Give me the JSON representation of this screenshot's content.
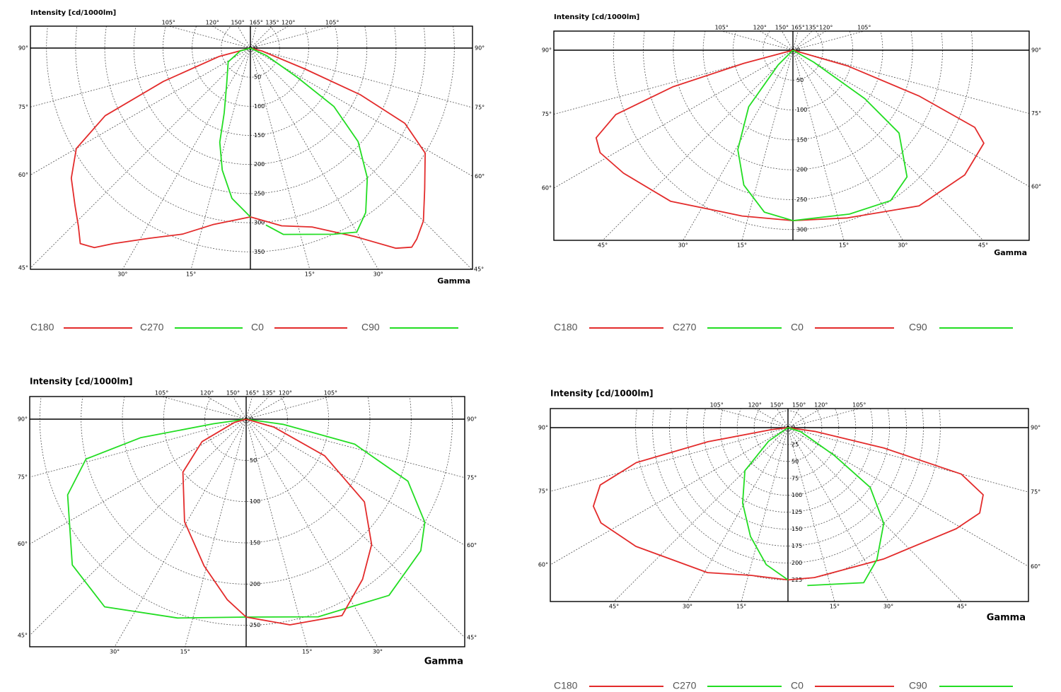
{
  "chart_data": [
    {
      "type": "polar",
      "title": "Intensity [cd/1000lm]",
      "xlabel": "Gamma",
      "legend": true,
      "rlim": [
        0,
        380
      ],
      "rticks": [
        0,
        50,
        100,
        150,
        200,
        250,
        300,
        350
      ],
      "top_angle_ticks": [
        {
          "value": -105,
          "label": "105°"
        },
        {
          "value": -120,
          "label": "120°"
        },
        {
          "value": -150,
          "label": "150°"
        },
        {
          "value": 165,
          "label": "165°"
        },
        {
          "value": 135,
          "label": "135°"
        },
        {
          "value": 120,
          "label": "120°"
        },
        {
          "value": 105,
          "label": "105°"
        }
      ],
      "left_angle_ticks": [
        {
          "value": -90,
          "label": "90°"
        },
        {
          "value": -75,
          "label": "75°"
        },
        {
          "value": -60,
          "label": "60°"
        },
        {
          "value": -45,
          "label": "45°"
        }
      ],
      "right_angle_ticks": [
        {
          "value": 90,
          "label": "90°"
        },
        {
          "value": 75,
          "label": "75°"
        },
        {
          "value": 60,
          "label": "60°"
        },
        {
          "value": 45,
          "label": "45°"
        }
      ],
      "bottom_angle_ticks": [
        {
          "value": -30,
          "label": "30°"
        },
        {
          "value": -15,
          "label": "15°"
        },
        {
          "value": 15,
          "label": "15°"
        },
        {
          "value": 30,
          "label": "30°"
        }
      ],
      "series": [
        {
          "name": "C180",
          "color": "#e32b2b",
          "x": [
            0,
            -12,
            -20,
            -28,
            -35,
            -38,
            -41,
            -44,
            -48,
            -54,
            -60,
            -65,
            -69,
            -75,
            -90
          ],
          "values": [
            290,
            310,
            340,
            370,
            410,
            435,
            445,
            425,
            405,
            380,
            345,
            275,
            160,
            55,
            0
          ]
        },
        {
          "name": "C270",
          "color": "#22dd22",
          "x": [
            0,
            -7,
            -13,
            -18,
            -22,
            -33,
            -58,
            -74,
            -90
          ],
          "values": [
            290,
            260,
            215,
            170,
            120,
            75,
            45,
            18,
            0
          ]
        },
        {
          "name": "C0",
          "color": "#e32b2b",
          "x": [
            0,
            10,
            19,
            29,
            36,
            39,
            41,
            45,
            51,
            59,
            64,
            67,
            69,
            76,
            90
          ],
          "values": [
            290,
            310,
            325,
            370,
            425,
            440,
            435,
            420,
            385,
            350,
            295,
            205,
            100,
            20,
            0
          ]
        },
        {
          "name": "C90",
          "color": "#22dd22",
          "x": [
            5,
            10,
            24,
            30,
            35,
            42,
            49,
            55,
            58,
            65,
            90
          ],
          "values": [
            305,
            325,
            350,
            365,
            345,
            300,
            245,
            175,
            95,
            30,
            0
          ]
        }
      ]
    },
    {
      "type": "polar",
      "title": "Intensity [cd/1000lm]",
      "xlabel": "Gamma",
      "legend": true,
      "rlim": [
        0,
        318
      ],
      "rticks": [
        0,
        50,
        100,
        150,
        200,
        250,
        300
      ],
      "top_angle_ticks": [
        {
          "value": -105,
          "label": "105°"
        },
        {
          "value": -120,
          "label": "120°"
        },
        {
          "value": -150,
          "label": "150°"
        },
        {
          "value": 165,
          "label": "165°"
        },
        {
          "value": 135,
          "label": "135°"
        },
        {
          "value": 120,
          "label": "120°"
        },
        {
          "value": 105,
          "label": "105°"
        }
      ],
      "left_angle_ticks": [
        {
          "value": -90,
          "label": "90°"
        },
        {
          "value": -75,
          "label": "75°"
        },
        {
          "value": -60,
          "label": "60°"
        }
      ],
      "right_angle_ticks": [
        {
          "value": 90,
          "label": "90°"
        },
        {
          "value": 75,
          "label": "75°"
        },
        {
          "value": 60,
          "label": "60°"
        }
      ],
      "bottom_angle_ticks": [
        {
          "value": -45,
          "label": "45°"
        },
        {
          "value": -30,
          "label": "30°"
        },
        {
          "value": -15,
          "label": "15°"
        },
        {
          "value": 15,
          "label": "15°"
        },
        {
          "value": 30,
          "label": "30°"
        },
        {
          "value": 45,
          "label": "45°"
        }
      ],
      "series": [
        {
          "name": "C180",
          "color": "#e32b2b",
          "x": [
            0,
            -17,
            -39,
            -54,
            -62,
            -66,
            -70,
            -73,
            -75,
            -90
          ],
          "values": [
            285,
            290,
            325,
            350,
            365,
            360,
            315,
            210,
            85,
            0
          ]
        },
        {
          "name": "C270",
          "color": "#22dd22",
          "x": [
            0,
            -10,
            -20,
            -29,
            -38,
            -45,
            -90
          ],
          "values": [
            285,
            275,
            240,
            190,
            120,
            35,
            0
          ]
        },
        {
          "name": "C0",
          "color": "#e32b2b",
          "x": [
            0,
            18,
            39,
            54,
            64,
            67,
            70,
            74,
            90
          ],
          "values": [
            285,
            295,
            335,
            355,
            355,
            330,
            225,
            95,
            0
          ]
        },
        {
          "name": "C90",
          "color": "#22dd22",
          "x": [
            0,
            19,
            33,
            42,
            52,
            56,
            60,
            90
          ],
          "values": [
            285,
            290,
            300,
            285,
            225,
            145,
            40,
            0
          ]
        }
      ]
    },
    {
      "type": "polar",
      "title": "Intensity [cd/1000lm]",
      "xlabel": "Gamma",
      "legend": false,
      "rlim": [
        0,
        276
      ],
      "rticks": [
        0,
        50,
        100,
        150,
        200,
        250
      ],
      "top_angle_ticks": [
        {
          "value": -105,
          "label": "105°"
        },
        {
          "value": -120,
          "label": "120°"
        },
        {
          "value": -150,
          "label": "150°"
        },
        {
          "value": 165,
          "label": "165°"
        },
        {
          "value": 135,
          "label": "135°"
        },
        {
          "value": 120,
          "label": "120°"
        },
        {
          "value": 105,
          "label": "105°"
        }
      ],
      "left_angle_ticks": [
        {
          "value": -90,
          "label": "90°"
        },
        {
          "value": -75,
          "label": "75°"
        },
        {
          "value": -60,
          "label": "60°"
        },
        {
          "value": -45,
          "label": "45°"
        }
      ],
      "right_angle_ticks": [
        {
          "value": 90,
          "label": "90°"
        },
        {
          "value": 75,
          "label": "75°"
        },
        {
          "value": 60,
          "label": "60°"
        },
        {
          "value": 45,
          "label": "45°"
        }
      ],
      "bottom_angle_ticks": [
        {
          "value": -30,
          "label": "30°"
        },
        {
          "value": -15,
          "label": "15°"
        },
        {
          "value": 15,
          "label": "15°"
        },
        {
          "value": 30,
          "label": "30°"
        }
      ],
      "series": [
        {
          "color": "#22dd22",
          "x": [
            0,
            -19,
            -37,
            -50,
            -67,
            -76,
            -80,
            -82,
            -90
          ],
          "values": [
            240,
            255,
            285,
            275,
            235,
            200,
            130,
            40,
            0
          ]
        },
        {
          "color": "#e32b2b",
          "x": [
            0,
            -6,
            -16,
            -31,
            -50,
            -63,
            -74,
            -90
          ],
          "values": [
            240,
            220,
            185,
            145,
            100,
            60,
            15,
            0
          ]
        },
        {
          "color": "#22dd22",
          "x": [
            0,
            20,
            39,
            53,
            60,
            69,
            77,
            82,
            90
          ],
          "values": [
            240,
            255,
            275,
            265,
            250,
            210,
            135,
            45,
            0
          ]
        },
        {
          "color": "#e32b2b",
          "x": [
            0,
            12,
            26,
            36,
            45,
            55,
            65,
            74,
            90
          ],
          "values": [
            240,
            255,
            265,
            240,
            215,
            175,
            105,
            35,
            0
          ]
        }
      ]
    },
    {
      "type": "polar",
      "title": "Intensity [cd/1000lm]",
      "xlabel": "Gamma",
      "legend": true,
      "rlim": [
        0,
        257
      ],
      "rticks": [
        0,
        25,
        50,
        75,
        100,
        125,
        150,
        175,
        200,
        225
      ],
      "top_angle_ticks": [
        {
          "value": -105,
          "label": "105°"
        },
        {
          "value": -120,
          "label": "120°"
        },
        {
          "value": -150,
          "label": "150°"
        },
        {
          "value": 150,
          "label": "150°"
        },
        {
          "value": 120,
          "label": "120°"
        },
        {
          "value": 105,
          "label": "105°"
        }
      ],
      "left_angle_ticks": [
        {
          "value": -90,
          "label": "90°"
        },
        {
          "value": -75,
          "label": "75°"
        },
        {
          "value": -60,
          "label": "60°"
        }
      ],
      "right_angle_ticks": [
        {
          "value": 90,
          "label": "90°"
        },
        {
          "value": 75,
          "label": "75°"
        },
        {
          "value": 60,
          "label": "60°"
        }
      ],
      "bottom_angle_ticks": [
        {
          "value": -45,
          "label": "45°"
        },
        {
          "value": -30,
          "label": "30°"
        },
        {
          "value": -15,
          "label": "15°"
        },
        {
          "value": 15,
          "label": "15°"
        },
        {
          "value": 30,
          "label": "30°"
        },
        {
          "value": 45,
          "label": "45°"
        }
      ],
      "series": [
        {
          "name": "C180",
          "color": "#e32b2b",
          "x": [
            0,
            -14,
            -29,
            -52,
            -63,
            -68,
            -73,
            -77,
            -80,
            -83,
            -90
          ],
          "values": [
            225,
            225,
            245,
            285,
            310,
            310,
            290,
            230,
            120,
            25,
            0
          ]
        },
        {
          "name": "C270",
          "color": "#22dd22",
          "x": [
            0,
            -9,
            -19,
            -31,
            -45,
            -55,
            -90
          ],
          "values": [
            225,
            205,
            170,
            130,
            90,
            35,
            0
          ]
        },
        {
          "name": "C0",
          "color": "#e32b2b",
          "x": [
            0,
            10,
            36,
            59,
            66,
            71,
            75,
            78,
            82,
            90
          ],
          "values": [
            225,
            225,
            240,
            290,
            310,
            305,
            265,
            145,
            40,
            0
          ]
        },
        {
          "name": "C90",
          "color": "#22dd22",
          "x": [
            7,
            26,
            34,
            45,
            54,
            59,
            72,
            90
          ],
          "values": [
            235,
            255,
            235,
            200,
            150,
            80,
            20,
            0
          ]
        }
      ]
    }
  ]
}
